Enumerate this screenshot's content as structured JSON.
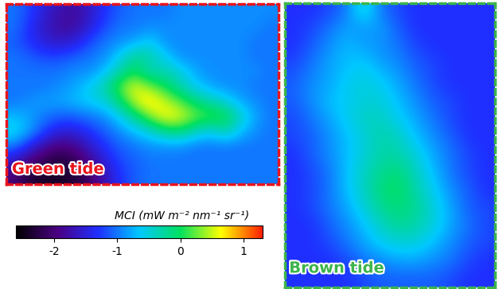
{
  "chart_data": [
    {
      "type": "heatmap",
      "label": "Green tide",
      "color": "#e8141c",
      "tick_labels": false,
      "cells": [
        [
          -1.0,
          -1.2,
          -1.5,
          -1.7,
          -1.8,
          -1.6,
          -1.3,
          -1.1,
          -1.0,
          -1.0,
          -1.0,
          -0.9,
          -0.9,
          -0.9,
          -0.9,
          -0.9,
          -0.9,
          -0.9
        ],
        [
          -1.0,
          -1.3,
          -1.6,
          -1.8,
          -1.8,
          -1.5,
          -1.2,
          -1.0,
          -1.0,
          -0.9,
          -0.9,
          -0.9,
          -0.9,
          -0.9,
          -0.9,
          -0.9,
          -0.9,
          -1.0
        ],
        [
          -1.1,
          -1.3,
          -1.5,
          -1.6,
          -1.5,
          -1.2,
          -1.0,
          -0.9,
          -0.8,
          -0.6,
          -0.9,
          -0.9,
          -0.9,
          -0.9,
          -0.9,
          -0.9,
          -1.0,
          -1.0
        ],
        [
          -1.0,
          -1.1,
          -1.2,
          -1.2,
          -1.1,
          -1.0,
          -0.9,
          -0.6,
          -0.2,
          -0.3,
          -0.6,
          -0.9,
          -0.9,
          -0.9,
          -0.9,
          -0.9,
          -1.0,
          -1.0
        ],
        [
          -1.0,
          -1.0,
          -1.0,
          -1.0,
          -0.9,
          -0.9,
          -0.7,
          -0.3,
          0.0,
          -0.4,
          -0.3,
          -0.5,
          -0.8,
          -0.9,
          -0.9,
          -0.9,
          -0.9,
          -1.0
        ],
        [
          -1.0,
          -1.0,
          -1.0,
          -0.9,
          -0.8,
          -0.6,
          -0.3,
          0.2,
          0.6,
          0.3,
          0.0,
          -0.3,
          -0.6,
          -0.8,
          -0.9,
          -0.9,
          -1.0,
          -1.0
        ],
        [
          -1.0,
          -0.9,
          -0.8,
          -0.8,
          -0.7,
          -0.6,
          -0.5,
          -0.1,
          0.5,
          0.8,
          0.5,
          0.2,
          -0.1,
          -0.3,
          -0.5,
          -0.8,
          -0.9,
          -1.0
        ],
        [
          -0.7,
          -0.8,
          -1.0,
          -1.1,
          -1.1,
          -1.0,
          -0.9,
          -0.6,
          -0.2,
          0.3,
          0.7,
          0.6,
          0.3,
          0.2,
          0.1,
          -0.4,
          -0.8,
          -1.0
        ],
        [
          -0.5,
          -0.8,
          -1.2,
          -1.5,
          -1.5,
          -1.3,
          -1.1,
          -0.9,
          -0.7,
          -0.5,
          -0.2,
          -0.1,
          -0.4,
          -0.6,
          -0.3,
          -0.7,
          -0.9,
          -1.0
        ],
        [
          -1.0,
          -1.4,
          -1.8,
          -2.0,
          -1.9,
          -1.6,
          -1.3,
          -1.1,
          -1.0,
          -0.9,
          -0.9,
          -0.9,
          -1.0,
          -1.0,
          -1.0,
          -1.0,
          -1.0,
          -1.0
        ],
        [
          -1.6,
          -2.0,
          -2.2,
          -2.3,
          -2.2,
          -1.9,
          -1.5,
          -1.2,
          -1.1,
          -1.0,
          -1.0,
          -1.0,
          -1.0,
          -1.0,
          -1.0,
          -1.0,
          -1.0,
          -1.0
        ],
        [
          -2.0,
          -2.3,
          -2.4,
          -2.4,
          -2.3,
          -2.1,
          -1.7,
          -1.3,
          -1.1,
          -1.0,
          -1.0,
          -1.0,
          -1.0,
          -1.0,
          -1.0,
          -1.0,
          -1.0,
          -1.0
        ]
      ]
    },
    {
      "type": "heatmap",
      "label": "Brown tide",
      "color": "#3cb44b",
      "tick_labels": false,
      "cells": [
        [
          -1.3,
          -1.3,
          -1.2,
          -1.0,
          -0.4,
          -1.0,
          -1.2,
          -1.3,
          -1.3,
          -1.3,
          -1.3,
          -1.3
        ],
        [
          -1.3,
          -1.2,
          -1.0,
          -0.8,
          -0.9,
          -0.8,
          -1.1,
          -1.3,
          -1.3,
          -1.3,
          -1.3,
          -1.3
        ],
        [
          -1.3,
          -1.1,
          -0.9,
          -0.7,
          -0.8,
          -0.9,
          -1.0,
          -1.2,
          -1.3,
          -1.3,
          -1.3,
          -1.3
        ],
        [
          -1.2,
          -1.0,
          -0.8,
          -0.7,
          -0.6,
          -0.8,
          -0.9,
          -1.1,
          -1.2,
          -1.3,
          -1.3,
          -1.3
        ],
        [
          -1.1,
          -0.9,
          -0.8,
          -0.6,
          -0.5,
          -0.6,
          -0.8,
          -1.0,
          -1.2,
          -1.3,
          -1.3,
          -1.3
        ],
        [
          -1.1,
          -0.9,
          -0.7,
          -0.6,
          -0.5,
          -0.5,
          -0.7,
          -0.9,
          -1.1,
          -1.2,
          -1.3,
          -1.3
        ],
        [
          -1.2,
          -1.0,
          -0.8,
          -0.6,
          -0.4,
          -0.4,
          -0.6,
          -0.8,
          -1.0,
          -1.2,
          -1.3,
          -1.3
        ],
        [
          -1.2,
          -1.1,
          -0.9,
          -0.7,
          -0.5,
          -0.3,
          -0.4,
          -0.7,
          -0.9,
          -1.1,
          -1.3,
          -1.3
        ],
        [
          -1.3,
          -1.1,
          -0.9,
          -0.7,
          -0.5,
          -0.3,
          -0.3,
          -0.5,
          -0.8,
          -1.0,
          -1.2,
          -1.3
        ],
        [
          -1.3,
          -1.2,
          -1.0,
          -0.7,
          -0.4,
          -0.2,
          -0.1,
          -0.4,
          -0.7,
          -1.0,
          -1.2,
          -1.3
        ],
        [
          -1.3,
          -1.2,
          -1.0,
          -0.7,
          -0.4,
          -0.1,
          0.0,
          -0.3,
          -0.6,
          -0.9,
          -1.1,
          -1.3
        ],
        [
          -1.3,
          -1.2,
          -1.0,
          -0.8,
          -0.5,
          -0.2,
          -0.1,
          -0.2,
          -0.5,
          -0.8,
          -1.1,
          -1.2
        ],
        [
          -1.3,
          -1.3,
          -1.1,
          -0.9,
          -0.7,
          -0.4,
          -0.2,
          -0.3,
          -0.5,
          -0.8,
          -1.0,
          -1.2
        ],
        [
          -1.3,
          -1.3,
          -1.2,
          -1.0,
          -0.8,
          -0.6,
          -0.5,
          -0.5,
          -0.7,
          -0.9,
          -1.1,
          -1.2
        ],
        [
          -1.3,
          -1.3,
          -1.3,
          -1.2,
          -1.0,
          -0.9,
          -0.8,
          -0.8,
          -0.9,
          -1.0,
          -1.2,
          -1.3
        ],
        [
          -1.3,
          -1.3,
          -1.3,
          -1.3,
          -1.2,
          -1.1,
          -1.1,
          -1.1,
          -1.1,
          -1.2,
          -1.3,
          -1.3
        ]
      ]
    }
  ],
  "colorbar": {
    "label": "MCI (mW m⁻² nm⁻¹ sr⁻¹)",
    "range": [
      -2.6,
      1.3
    ],
    "ticks": [
      -2,
      -1,
      0,
      1
    ]
  }
}
